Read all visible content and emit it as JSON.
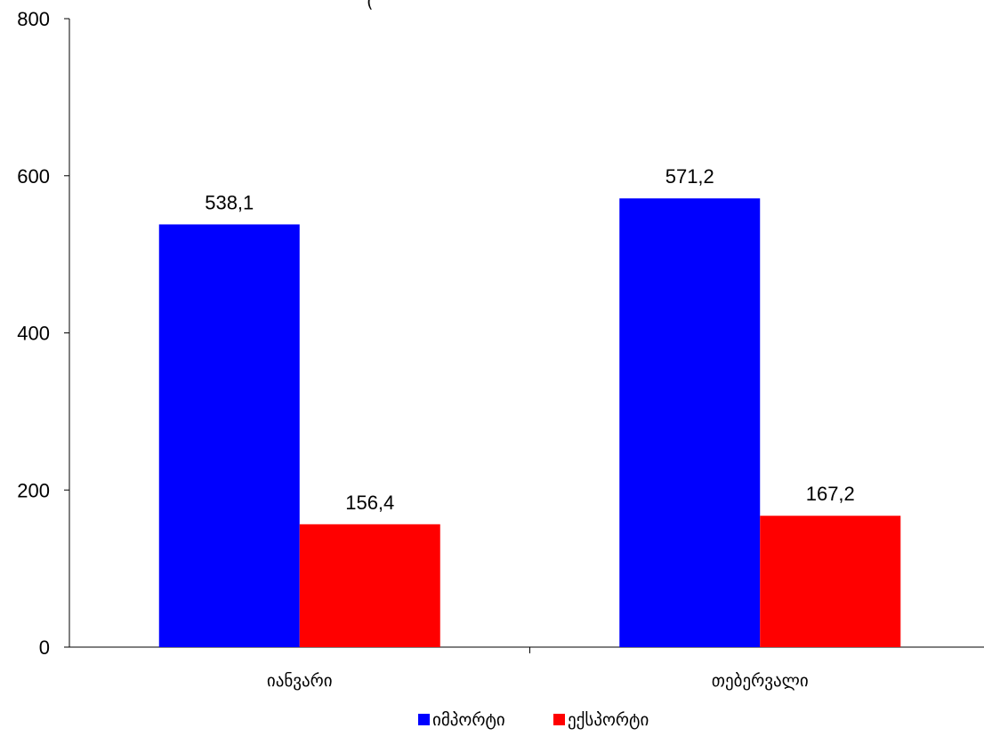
{
  "chart_data": {
    "type": "bar",
    "title_fragment": "(",
    "categories": [
      "იანვარი",
      "თებერვალი"
    ],
    "series": [
      {
        "name": "იმპორტი",
        "values": [
          538.1,
          571.2
        ],
        "color": "#0000ff"
      },
      {
        "name": "ექსპორტი",
        "values": [
          156.4,
          167.2
        ],
        "color": "#ff0000"
      }
    ],
    "data_labels": [
      [
        "538,1",
        "571,2"
      ],
      [
        "156,4",
        "167,2"
      ]
    ],
    "ylim": [
      0,
      800
    ],
    "yticks": [
      "0",
      "200",
      "400",
      "600",
      "800"
    ],
    "grid": false,
    "legend_position": "bottom"
  }
}
